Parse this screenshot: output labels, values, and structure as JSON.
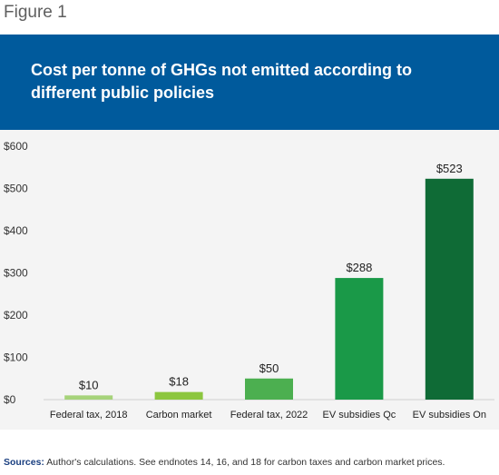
{
  "figure_label": "Figure 1",
  "chart_data": {
    "type": "bar",
    "title": "Cost per tonne of GHGs not emitted according to different public policies",
    "categories": [
      "Federal tax, 2018",
      "Carbon market",
      "Federal tax, 2022",
      "EV subsidies Qc",
      "EV subsidies On"
    ],
    "values": [
      10,
      18,
      50,
      288,
      523
    ],
    "data_labels": [
      "$10",
      "$18",
      "$50",
      "$288",
      "$523"
    ],
    "bar_colors": [
      "#a6d37a",
      "#8cc63f",
      "#4caf50",
      "#1a9948",
      "#0f6b36"
    ],
    "yticks": [
      "$0",
      "$100",
      "$200",
      "$300",
      "$400",
      "$500",
      "$600"
    ],
    "ylim": [
      0,
      600
    ],
    "grid": false,
    "legend": "none"
  },
  "sources": {
    "label": "Sources:",
    "text": " Author's calculations. See endnotes 14, 16, and 18 for carbon taxes and carbon market prices."
  }
}
